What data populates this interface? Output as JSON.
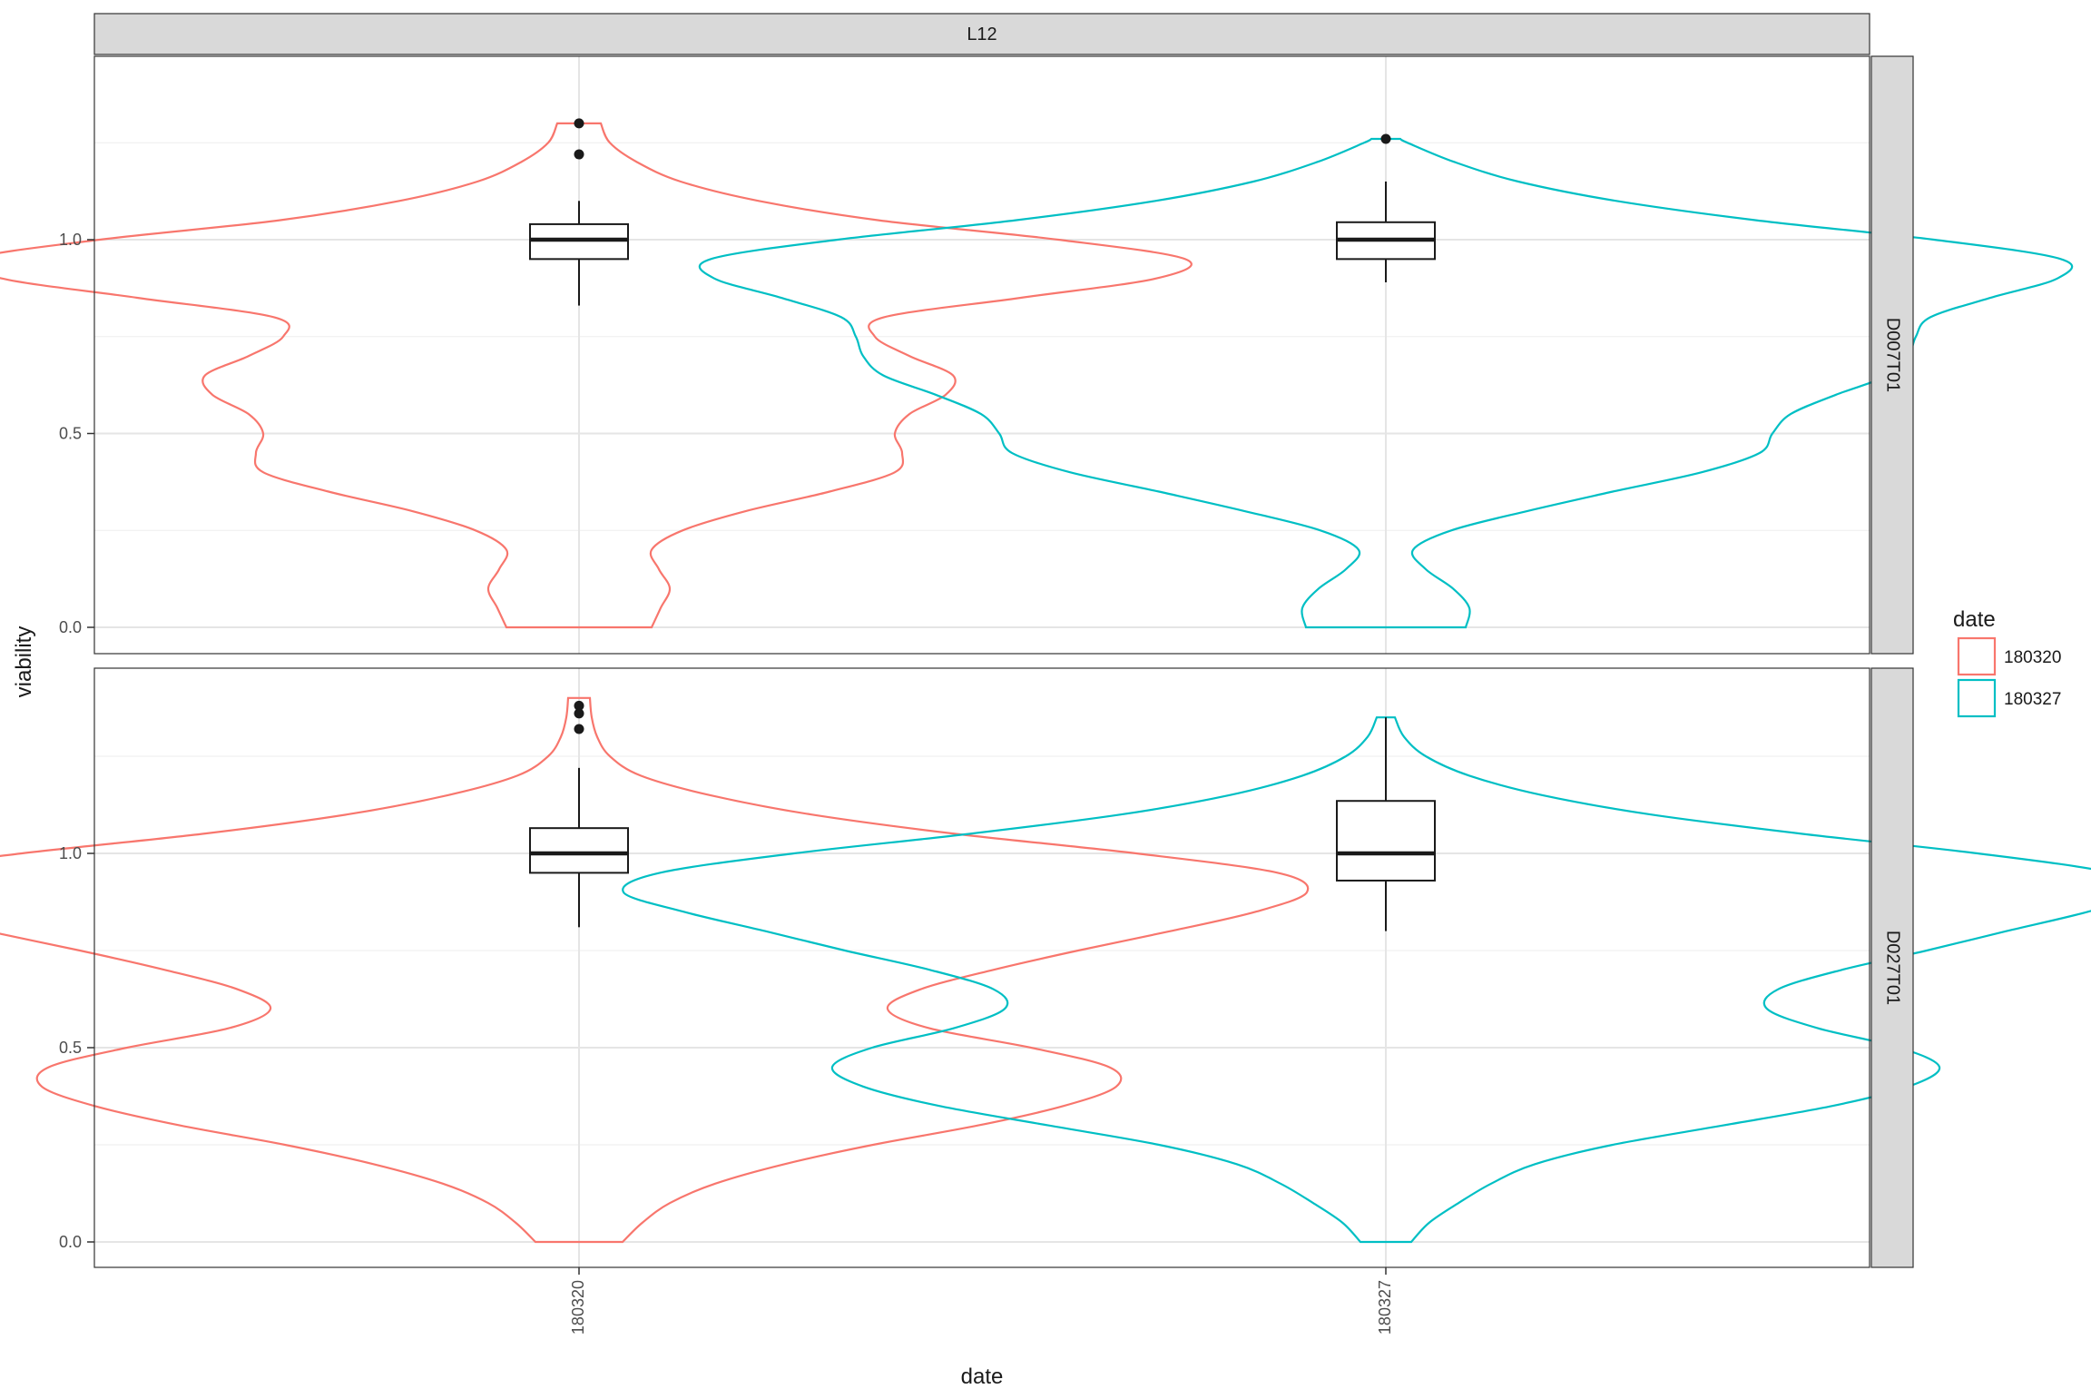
{
  "chart_data": {
    "type": "violin",
    "facet_top_label": "L12",
    "facet_rows": [
      "D007T01",
      "D027T01"
    ],
    "xlabel": "date",
    "ylabel": "viability",
    "categories": [
      "180320",
      "180327"
    ],
    "y_ticks": [
      "0.0",
      "0.5",
      "1.0"
    ],
    "ylim": [
      0,
      1.42
    ],
    "legend": {
      "title": "date",
      "position": "right",
      "entries": [
        {
          "label": "180320",
          "color": "#F8766D"
        },
        {
          "label": "180327",
          "color": "#00BFC4"
        }
      ]
    },
    "grid": true,
    "panels": [
      {
        "row": "D007T01",
        "violins": [
          {
            "category": "180320",
            "color": "#F8766D",
            "ymin": 0.0,
            "ymax": 1.3,
            "profile": [
              [
                0.0,
                0.4
              ],
              [
                0.05,
                0.45
              ],
              [
                0.1,
                0.5
              ],
              [
                0.15,
                0.44
              ],
              [
                0.2,
                0.4
              ],
              [
                0.25,
                0.57
              ],
              [
                0.3,
                0.92
              ],
              [
                0.35,
                1.38
              ],
              [
                0.4,
                1.74
              ],
              [
                0.45,
                1.78
              ],
              [
                0.5,
                1.74
              ],
              [
                0.55,
                1.82
              ],
              [
                0.6,
                2.02
              ],
              [
                0.65,
                2.06
              ],
              [
                0.7,
                1.82
              ],
              [
                0.75,
                1.63
              ],
              [
                0.8,
                1.68
              ],
              [
                0.85,
                2.43
              ],
              [
                0.9,
                3.18
              ],
              [
                0.95,
                3.34
              ],
              [
                1.0,
                2.64
              ],
              [
                1.05,
                1.65
              ],
              [
                1.1,
                0.99
              ],
              [
                1.15,
                0.56
              ],
              [
                1.2,
                0.32
              ],
              [
                1.25,
                0.17
              ],
              [
                1.3,
                0.12
              ]
            ],
            "box": {
              "q1": 0.95,
              "median": 1.0,
              "q3": 1.04,
              "whisker_low": 0.83,
              "whisker_high": 1.1
            },
            "outliers": [
              1.22,
              1.3
            ]
          },
          {
            "category": "180327",
            "color": "#00BFC4",
            "ymin": 0.0,
            "ymax": 1.26,
            "profile": [
              [
                0.0,
                0.44
              ],
              [
                0.05,
                0.46
              ],
              [
                0.1,
                0.37
              ],
              [
                0.15,
                0.22
              ],
              [
                0.2,
                0.15
              ],
              [
                0.25,
                0.36
              ],
              [
                0.3,
                0.78
              ],
              [
                0.35,
                1.25
              ],
              [
                0.4,
                1.74
              ],
              [
                0.45,
                2.06
              ],
              [
                0.5,
                2.13
              ],
              [
                0.55,
                2.23
              ],
              [
                0.6,
                2.48
              ],
              [
                0.65,
                2.77
              ],
              [
                0.7,
                2.88
              ],
              [
                0.75,
                2.92
              ],
              [
                0.8,
                3.0
              ],
              [
                0.85,
                3.33
              ],
              [
                0.9,
                3.7
              ],
              [
                0.95,
                3.72
              ],
              [
                1.0,
                3.02
              ],
              [
                1.05,
                2.04
              ],
              [
                1.1,
                1.27
              ],
              [
                1.15,
                0.73
              ],
              [
                1.2,
                0.38
              ],
              [
                1.25,
                0.12
              ],
              [
                1.26,
                0.08
              ]
            ],
            "box": {
              "q1": 0.95,
              "median": 1.0,
              "q3": 1.045,
              "whisker_low": 0.89,
              "whisker_high": 1.15
            },
            "outliers": [
              1.26
            ]
          }
        ]
      },
      {
        "row": "D027T01",
        "violins": [
          {
            "category": "180320",
            "color": "#F8766D",
            "ymin": 0.0,
            "ymax": 1.4,
            "profile": [
              [
                0.0,
                0.24
              ],
              [
                0.05,
                0.35
              ],
              [
                0.1,
                0.5
              ],
              [
                0.15,
                0.75
              ],
              [
                0.2,
                1.13
              ],
              [
                0.25,
                1.62
              ],
              [
                0.3,
                2.2
              ],
              [
                0.35,
                2.67
              ],
              [
                0.4,
                2.96
              ],
              [
                0.45,
                2.92
              ],
              [
                0.5,
                2.49
              ],
              [
                0.55,
                1.93
              ],
              [
                0.6,
                1.7
              ],
              [
                0.65,
                1.88
              ],
              [
                0.7,
                2.28
              ],
              [
                0.75,
                2.75
              ],
              [
                0.8,
                3.26
              ],
              [
                0.85,
                3.73
              ],
              [
                0.9,
                4.01
              ],
              [
                0.95,
                3.85
              ],
              [
                1.0,
                3.07
              ],
              [
                1.05,
                2.08
              ],
              [
                1.1,
                1.28
              ],
              [
                1.15,
                0.72
              ],
              [
                1.2,
                0.34
              ],
              [
                1.25,
                0.17
              ],
              [
                1.3,
                0.1
              ],
              [
                1.35,
                0.07
              ],
              [
                1.4,
                0.06
              ]
            ],
            "box": {
              "q1": 0.95,
              "median": 1.0,
              "q3": 1.065,
              "whisker_low": 0.81,
              "whisker_high": 1.22
            },
            "outliers": [
              1.32,
              1.36,
              1.38
            ]
          },
          {
            "category": "180327",
            "color": "#00BFC4",
            "ymin": 0.0,
            "ymax": 1.35,
            "profile": [
              [
                0.0,
                0.14
              ],
              [
                0.05,
                0.24
              ],
              [
                0.1,
                0.4
              ],
              [
                0.15,
                0.58
              ],
              [
                0.2,
                0.82
              ],
              [
                0.25,
                1.25
              ],
              [
                0.3,
                1.86
              ],
              [
                0.35,
                2.46
              ],
              [
                0.4,
                2.88
              ],
              [
                0.45,
                3.05
              ],
              [
                0.5,
                2.83
              ],
              [
                0.55,
                2.38
              ],
              [
                0.6,
                2.1
              ],
              [
                0.65,
                2.16
              ],
              [
                0.7,
                2.51
              ],
              [
                0.75,
                2.98
              ],
              [
                0.8,
                3.42
              ],
              [
                0.85,
                3.87
              ],
              [
                0.9,
                4.2
              ],
              [
                0.95,
                4.0
              ],
              [
                1.0,
                3.26
              ],
              [
                1.05,
                2.3
              ],
              [
                1.1,
                1.46
              ],
              [
                1.15,
                0.86
              ],
              [
                1.2,
                0.46
              ],
              [
                1.25,
                0.22
              ],
              [
                1.3,
                0.1
              ],
              [
                1.35,
                0.05
              ]
            ],
            "box": {
              "q1": 0.93,
              "median": 1.0,
              "q3": 1.135,
              "whisker_low": 0.8,
              "whisker_high": 1.35
            },
            "outliers": []
          }
        ]
      }
    ]
  }
}
